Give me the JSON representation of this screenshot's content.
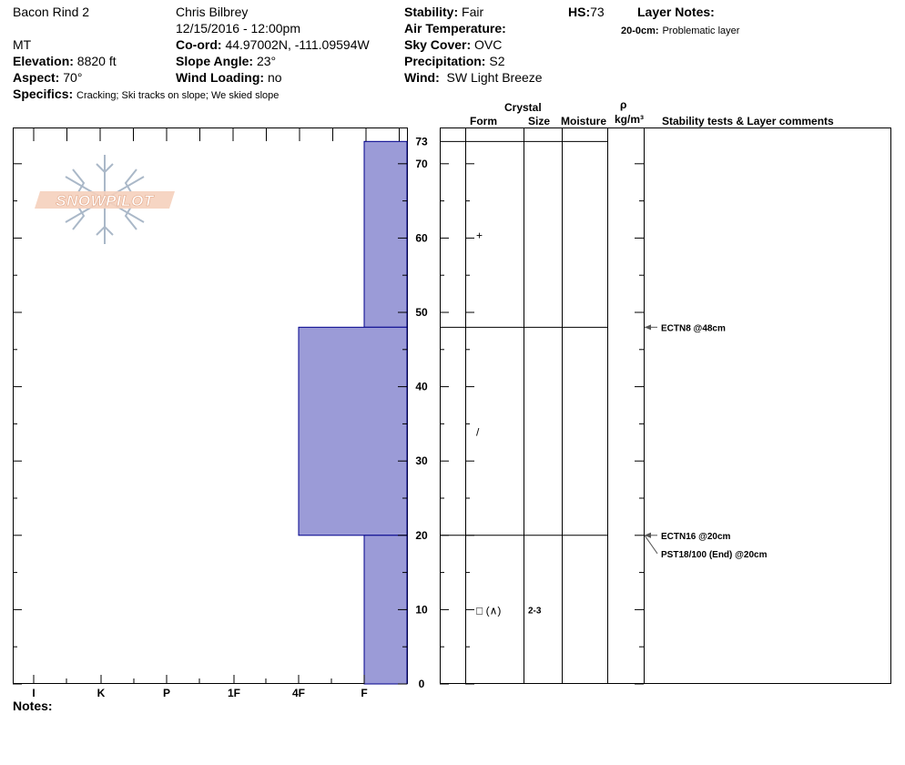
{
  "header": {
    "location": "Bacon Rind 2",
    "observer": "Chris Bilbrey",
    "datetime": "12/15/2016 - 12:00pm",
    "state": "MT",
    "elevation_label": "Elevation:",
    "elevation_value": "8820 ft",
    "coord_label": "Co-ord:",
    "coord_value": "44.97002N, -111.09594W",
    "aspect_label": "Aspect:",
    "aspect_value": "70°",
    "slope_label": "Slope Angle:",
    "slope_value": "23°",
    "wind_loading_label": "Wind Loading:",
    "wind_loading_value": "no",
    "specifics_label": "Specifics:",
    "specifics_value": "Cracking;  Ski tracks on slope; We skied slope",
    "stability_label": "Stability:",
    "stability_value": "Fair",
    "hs_label": "HS:",
    "hs_value": "73",
    "air_temp_label": "Air Temperature:",
    "sky_cover_label": "Sky Cover:",
    "sky_cover_value": "OVC",
    "precip_label": "Precipitation:",
    "precip_value": "S2",
    "wind_label": "Wind:",
    "wind_value": "SW Light Breeze",
    "layer_notes_label": "Layer Notes:",
    "layer_note_range": "20-0cm:",
    "layer_note_text": "Problematic layer"
  },
  "logo_text": "SNOWPILOT",
  "notes_label": "Notes:",
  "table_headers": {
    "crystal": "Crystal",
    "form": "Form",
    "size": "Size",
    "moisture": "Moisture",
    "rho": "ρ",
    "density_unit": "kg/m³",
    "comments": "Stability tests & Layer comments"
  },
  "chart_data": {
    "type": "bar",
    "orientation": "horizontal",
    "bar_color": "#9b9bd7",
    "bar_stroke": "#00008b",
    "x_categories": [
      "I",
      "K",
      "P",
      "1F",
      "4F",
      "F"
    ],
    "y_range": [
      0,
      73
    ],
    "y_ticks": [
      0,
      10,
      20,
      30,
      40,
      50,
      60,
      70
    ],
    "hs_tick": "73",
    "layers": [
      {
        "top": 73,
        "bottom": 48,
        "hardness": "F",
        "form": "+",
        "size": ""
      },
      {
        "top": 48,
        "bottom": 20,
        "hardness": "4F",
        "form": "/",
        "size": ""
      },
      {
        "top": 20,
        "bottom": 0,
        "hardness": "F",
        "form": "□ (∧)",
        "size": "2-3"
      }
    ],
    "tests": [
      {
        "label": "ECTN8 @48cm",
        "depth": 48
      },
      {
        "label": "ECTN16 @20cm",
        "depth": 20
      },
      {
        "label": "PST18/100 (End) @20cm",
        "depth": 20
      }
    ]
  }
}
